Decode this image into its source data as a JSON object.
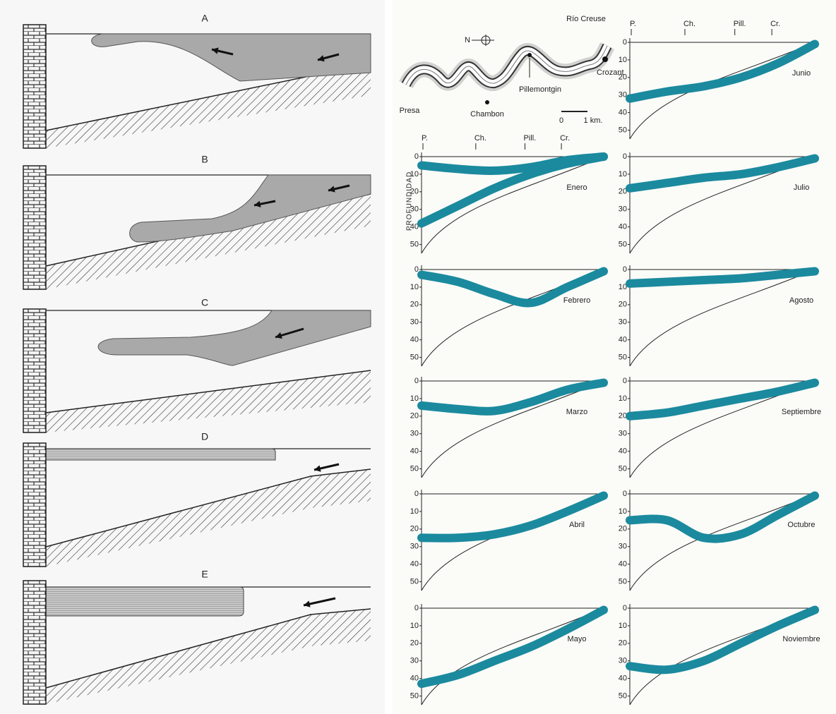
{
  "left_figure": {
    "labels": [
      "A",
      "B",
      "C",
      "D",
      "E"
    ]
  },
  "map": {
    "river": "Río Creuse",
    "north": "N",
    "places": [
      "Crozant",
      "Pillemontgin",
      "Presa",
      "Chambon"
    ],
    "scale": [
      "0",
      "1 km."
    ]
  },
  "profiles": {
    "axis_label": "PROFUNDIDAD",
    "stations": [
      "P.",
      "Ch.",
      "Pill.",
      "Cr."
    ],
    "yticks": [
      0,
      10,
      20,
      30,
      40,
      50
    ],
    "ylim": [
      0,
      55
    ],
    "band_color": "#1b8a9e",
    "panels": [
      {
        "month": "Enero",
        "show_stations": true,
        "bands": [
          [
            5,
            7,
            8,
            6,
            2,
            0
          ],
          [
            38,
            28,
            18,
            10,
            4,
            0
          ]
        ]
      },
      {
        "month": "Febrero",
        "bands": [
          [
            3,
            7,
            14,
            19,
            10,
            1
          ]
        ]
      },
      {
        "month": "Marzo",
        "bands": [
          [
            14,
            16,
            17,
            12,
            5,
            1
          ]
        ]
      },
      {
        "month": "Abril",
        "bands": [
          [
            25,
            25,
            23,
            18,
            10,
            1
          ]
        ]
      },
      {
        "month": "Mayo",
        "bands": [
          [
            43,
            38,
            30,
            22,
            12,
            1
          ]
        ]
      },
      {
        "month": "Junio",
        "show_stations": true,
        "bands": [
          [
            32,
            28,
            25,
            20,
            12,
            1
          ]
        ]
      },
      {
        "month": "Julio",
        "bands": [
          [
            18,
            15,
            12,
            10,
            6,
            1
          ]
        ]
      },
      {
        "month": "Agosto",
        "bands": [
          [
            8,
            7,
            6,
            5,
            3,
            1
          ]
        ]
      },
      {
        "month": "Septiembre",
        "bands": [
          [
            20,
            18,
            14,
            10,
            6,
            1
          ]
        ]
      },
      {
        "month": "Octubre",
        "bands": [
          [
            15,
            15,
            25,
            23,
            12,
            1
          ]
        ]
      },
      {
        "month": "Noviembre",
        "bands": [
          [
            33,
            35,
            30,
            20,
            10,
            1
          ]
        ]
      }
    ]
  }
}
